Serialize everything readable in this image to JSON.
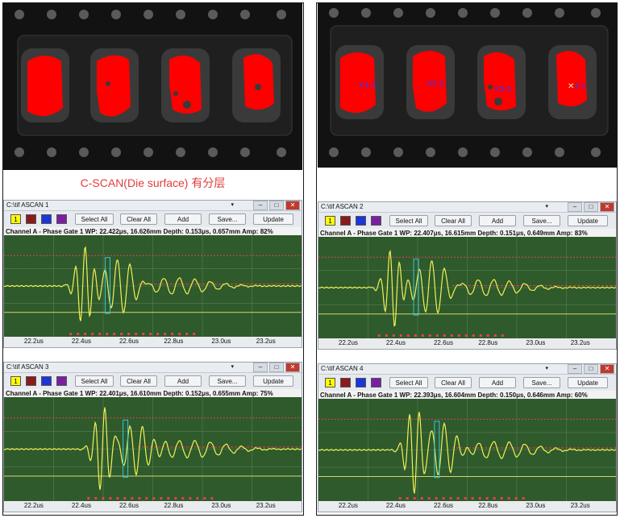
{
  "caption": "C-SCAN(Die surface) 有分层",
  "cscan_right_markers": [
    "1-1",
    "2-1",
    "3-1",
    "4-1"
  ],
  "colors": {
    "defect": "#ff0000",
    "waveform": "#f2f055",
    "plot_bg": "#2e5a2c",
    "gate": "#e8414b"
  },
  "ascans": [
    {
      "title": "C:\\tif ASCAN 1",
      "status": "Channel A - Phase Gate 1 WP: 22.422μs, 16.626mm  Depth: 0.153μs, 0.657mm  Amp: 82%"
    },
    {
      "title": "C:\\tif ASCAN 2",
      "status": "Channel A - Phase Gate 1 WP: 22.407μs, 16.615mm  Depth: 0.151μs, 0.649mm  Amp: 83%"
    },
    {
      "title": "C:\\tif ASCAN 3",
      "status": "Channel A - Phase Gate 1 WP: 22.401μs, 16.610mm  Depth: 0.152μs, 0.655mm  Amp: 75%"
    },
    {
      "title": "C:\\tif ASCAN 4",
      "status": "Channel A - Phase Gate 1 WP: 22.393μs, 16.604mm  Depth: 0.150μs, 0.646mm  Amp: 60%"
    }
  ],
  "toolbar": {
    "swatch_1_label": "1",
    "select_all": "Select All",
    "clear_all": "Clear All",
    "add": "Add",
    "save": "Save...",
    "update": "Update"
  },
  "window_controls": {
    "dropdown": "▾",
    "minimize": "–",
    "maximize": "□",
    "close": "✕"
  },
  "x_ticks": [
    "22.2us",
    "22.4us",
    "22.6us",
    "22.8us",
    "23.0us",
    "23.2us"
  ]
}
